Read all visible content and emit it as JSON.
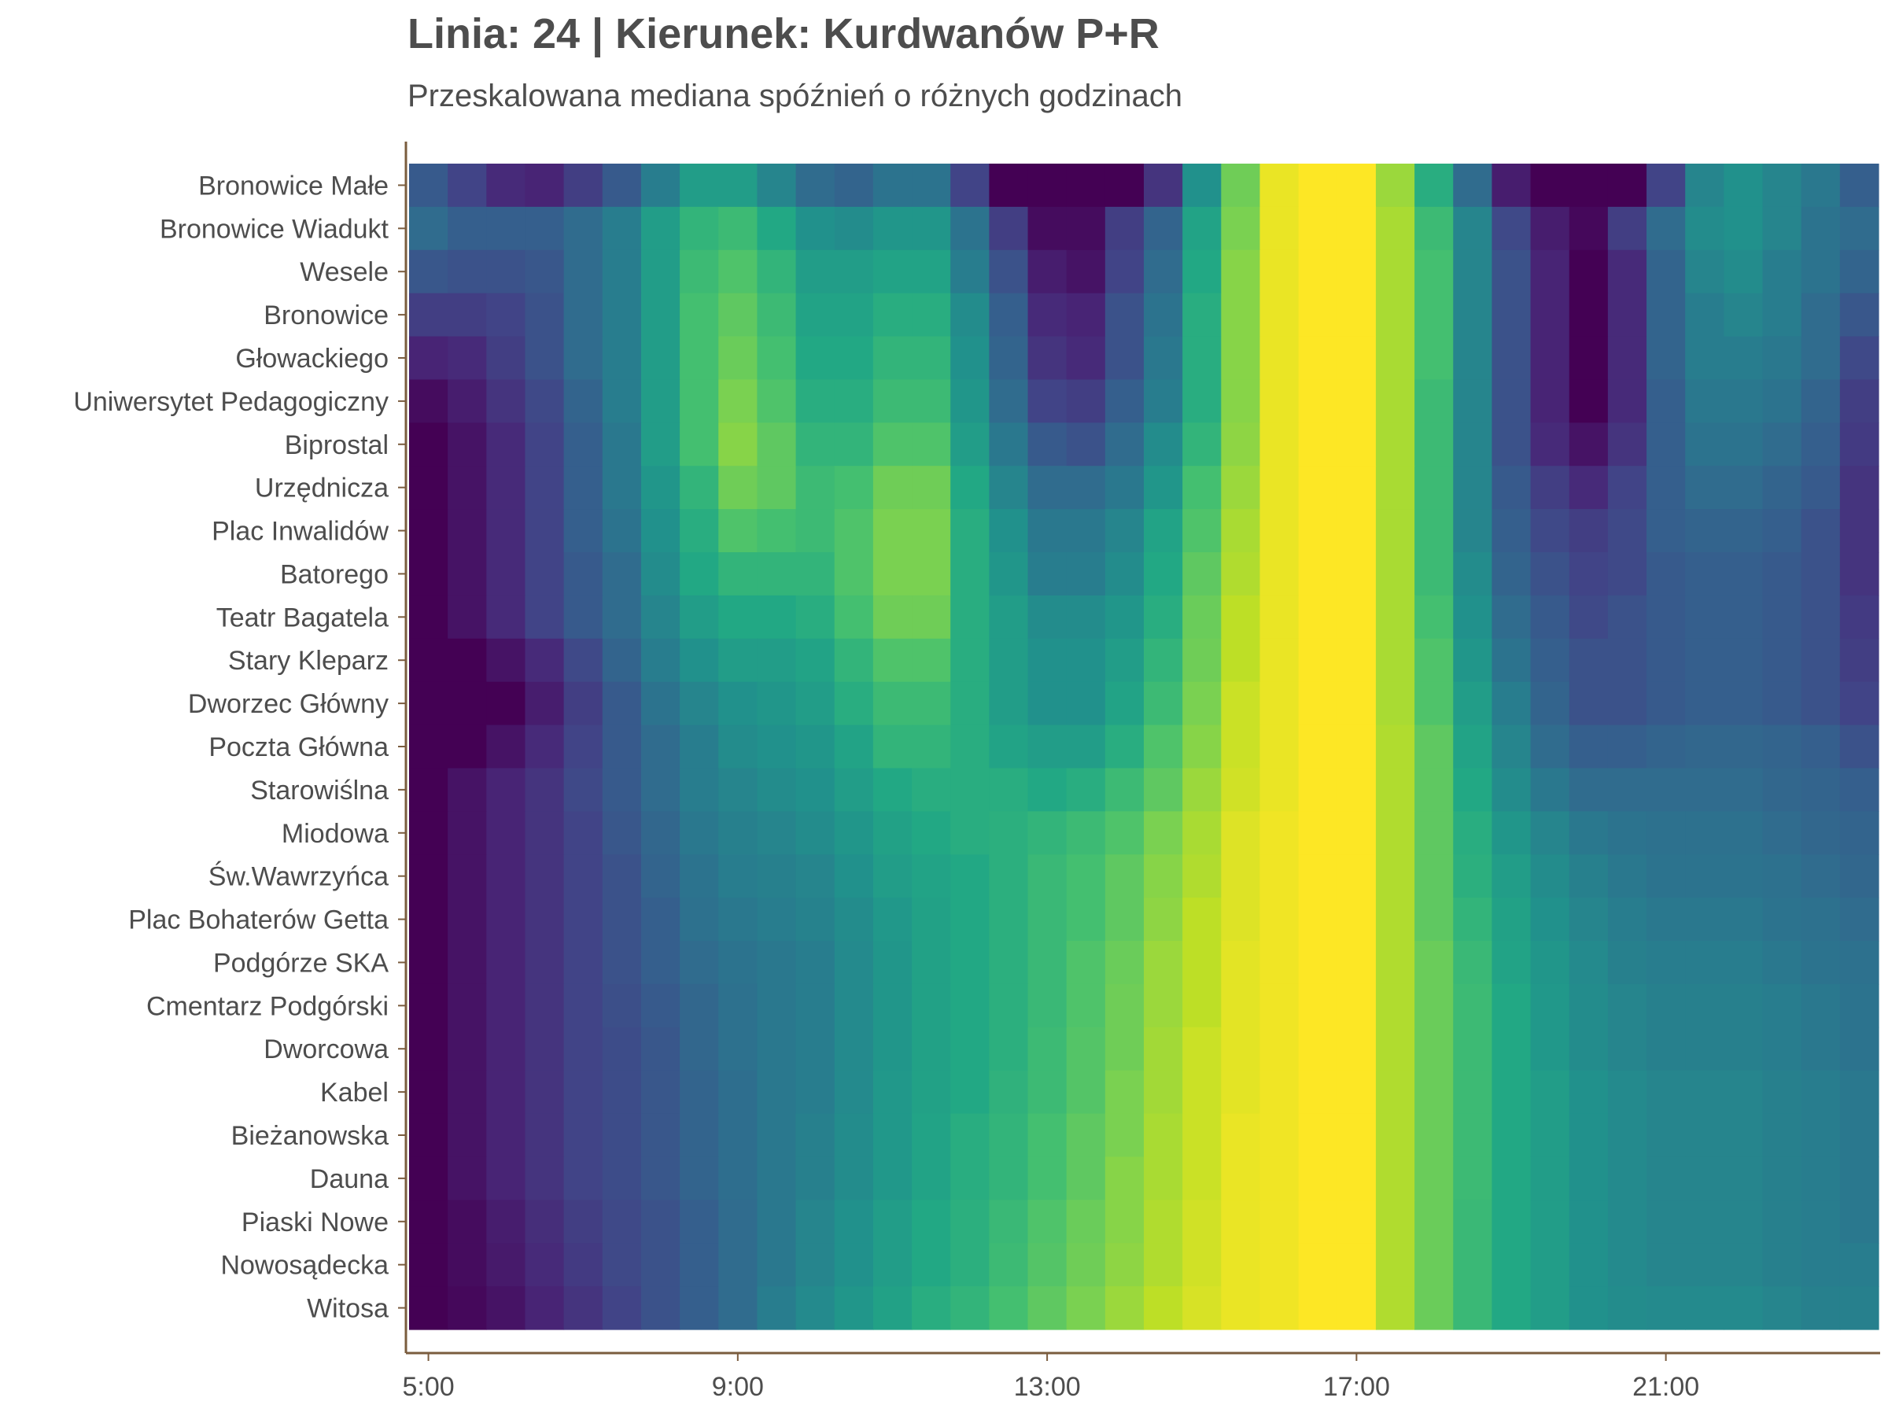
{
  "chart_data": {
    "type": "heatmap",
    "title": "Linia: 24 | Kierunek: Kurdwanów P+R",
    "subtitle": "Przeskalowana mediana spóźnień o różnych godzinach",
    "xlabel": "",
    "ylabel": "",
    "x_ticks": [
      "5:00",
      "9:00",
      "13:00",
      "17:00",
      "21:00"
    ],
    "x_hours": [
      5,
      6,
      7,
      8,
      9,
      10,
      11,
      12,
      13,
      14,
      15,
      16,
      17,
      18,
      19,
      20,
      21,
      22
    ],
    "x_bins_per_hour": 2,
    "colormap": "viridis",
    "grid": false,
    "legend": "none",
    "stops": [
      "Bronowice Małe",
      "Bronowice Wiadukt",
      "Wesele",
      "Bronowice",
      "Głowackiego",
      "Uniwersytet Pedagogiczny",
      "Biprostal",
      "Urzędnicza",
      "Plac Inwalidów",
      "Batorego",
      "Teatr Bagatela",
      "Stary Kleparz",
      "Dworzec Główny",
      "Poczta Główna",
      "Starowiślna",
      "Miodowa",
      "Św.Wawrzyńca",
      "Plac Bohaterów Getta",
      "Podgórze SKA",
      "Cmentarz Podgórski",
      "Dworcowa",
      "Kabel",
      "Bieżanowska",
      "Dauna",
      "Piaski Nowe",
      "Nowosądecka",
      "Witosa"
    ],
    "values": [
      [
        0.28,
        0.2,
        0.12,
        0.1,
        0.18,
        0.28,
        0.42,
        0.55,
        0.55,
        0.45,
        0.35,
        0.32,
        0.38,
        0.38,
        0.2,
        0.0,
        0.0,
        0.0,
        0.0,
        0.15,
        0.5,
        0.78,
        0.97,
        1.0,
        1.0,
        0.85,
        0.62,
        0.35,
        0.08,
        0.0,
        0.0,
        0.0,
        0.2,
        0.45,
        0.5,
        0.45,
        0.4,
        0.3
      ],
      [
        0.35,
        0.3,
        0.3,
        0.3,
        0.35,
        0.42,
        0.55,
        0.65,
        0.68,
        0.6,
        0.5,
        0.48,
        0.52,
        0.52,
        0.38,
        0.18,
        0.03,
        0.03,
        0.18,
        0.32,
        0.58,
        0.8,
        0.97,
        1.0,
        1.0,
        0.87,
        0.68,
        0.45,
        0.22,
        0.08,
        0.02,
        0.18,
        0.35,
        0.48,
        0.5,
        0.45,
        0.38,
        0.35
      ],
      [
        0.27,
        0.25,
        0.25,
        0.27,
        0.35,
        0.42,
        0.55,
        0.68,
        0.72,
        0.65,
        0.55,
        0.55,
        0.58,
        0.58,
        0.42,
        0.25,
        0.08,
        0.05,
        0.2,
        0.35,
        0.6,
        0.82,
        0.97,
        1.0,
        1.0,
        0.87,
        0.7,
        0.45,
        0.25,
        0.1,
        0.0,
        0.12,
        0.32,
        0.45,
        0.48,
        0.42,
        0.38,
        0.32
      ],
      [
        0.18,
        0.18,
        0.2,
        0.25,
        0.35,
        0.42,
        0.55,
        0.7,
        0.75,
        0.68,
        0.58,
        0.58,
        0.62,
        0.62,
        0.48,
        0.3,
        0.12,
        0.1,
        0.25,
        0.38,
        0.62,
        0.82,
        0.97,
        1.0,
        1.0,
        0.87,
        0.7,
        0.45,
        0.25,
        0.1,
        0.0,
        0.12,
        0.32,
        0.42,
        0.45,
        0.42,
        0.35,
        0.27
      ],
      [
        0.1,
        0.12,
        0.18,
        0.25,
        0.35,
        0.42,
        0.55,
        0.7,
        0.77,
        0.7,
        0.6,
        0.6,
        0.65,
        0.65,
        0.5,
        0.32,
        0.15,
        0.12,
        0.25,
        0.4,
        0.62,
        0.82,
        0.97,
        1.0,
        1.0,
        0.87,
        0.7,
        0.45,
        0.25,
        0.1,
        0.0,
        0.12,
        0.32,
        0.42,
        0.42,
        0.4,
        0.35,
        0.22
      ],
      [
        0.03,
        0.08,
        0.15,
        0.22,
        0.32,
        0.42,
        0.55,
        0.7,
        0.8,
        0.72,
        0.62,
        0.62,
        0.68,
        0.68,
        0.52,
        0.35,
        0.2,
        0.18,
        0.3,
        0.42,
        0.62,
        0.82,
        0.97,
        1.0,
        1.0,
        0.87,
        0.68,
        0.45,
        0.25,
        0.1,
        0.0,
        0.12,
        0.3,
        0.4,
        0.4,
        0.38,
        0.32,
        0.18
      ],
      [
        0.0,
        0.05,
        0.12,
        0.2,
        0.3,
        0.4,
        0.55,
        0.7,
        0.82,
        0.75,
        0.65,
        0.65,
        0.72,
        0.72,
        0.55,
        0.4,
        0.28,
        0.25,
        0.35,
        0.48,
        0.65,
        0.83,
        0.97,
        1.0,
        1.0,
        0.87,
        0.68,
        0.45,
        0.25,
        0.12,
        0.05,
        0.15,
        0.3,
        0.38,
        0.38,
        0.35,
        0.3,
        0.17
      ],
      [
        0.0,
        0.05,
        0.12,
        0.2,
        0.3,
        0.4,
        0.52,
        0.65,
        0.78,
        0.75,
        0.68,
        0.7,
        0.78,
        0.78,
        0.6,
        0.45,
        0.35,
        0.35,
        0.4,
        0.52,
        0.7,
        0.85,
        0.97,
        1.0,
        1.0,
        0.87,
        0.68,
        0.45,
        0.28,
        0.18,
        0.12,
        0.2,
        0.3,
        0.35,
        0.35,
        0.32,
        0.28,
        0.15
      ],
      [
        0.0,
        0.05,
        0.12,
        0.2,
        0.3,
        0.38,
        0.5,
        0.62,
        0.72,
        0.7,
        0.68,
        0.72,
        0.8,
        0.8,
        0.62,
        0.5,
        0.4,
        0.4,
        0.45,
        0.58,
        0.72,
        0.87,
        0.97,
        1.0,
        1.0,
        0.87,
        0.68,
        0.45,
        0.3,
        0.22,
        0.18,
        0.22,
        0.3,
        0.32,
        0.32,
        0.3,
        0.25,
        0.15
      ],
      [
        0.0,
        0.05,
        0.12,
        0.2,
        0.28,
        0.35,
        0.48,
        0.6,
        0.65,
        0.65,
        0.65,
        0.72,
        0.8,
        0.8,
        0.62,
        0.52,
        0.42,
        0.42,
        0.48,
        0.6,
        0.75,
        0.88,
        0.97,
        1.0,
        1.0,
        0.87,
        0.68,
        0.48,
        0.32,
        0.25,
        0.2,
        0.22,
        0.28,
        0.3,
        0.3,
        0.28,
        0.25,
        0.15
      ],
      [
        0.0,
        0.05,
        0.12,
        0.2,
        0.28,
        0.35,
        0.45,
        0.55,
        0.6,
        0.6,
        0.62,
        0.7,
        0.78,
        0.78,
        0.62,
        0.55,
        0.48,
        0.48,
        0.52,
        0.62,
        0.77,
        0.9,
        0.97,
        1.0,
        1.0,
        0.87,
        0.7,
        0.5,
        0.35,
        0.28,
        0.22,
        0.25,
        0.28,
        0.3,
        0.3,
        0.28,
        0.25,
        0.17
      ],
      [
        0.0,
        0.0,
        0.05,
        0.12,
        0.22,
        0.32,
        0.42,
        0.5,
        0.55,
        0.55,
        0.58,
        0.65,
        0.72,
        0.72,
        0.62,
        0.55,
        0.5,
        0.5,
        0.55,
        0.65,
        0.78,
        0.9,
        0.97,
        1.0,
        1.0,
        0.87,
        0.72,
        0.52,
        0.38,
        0.3,
        0.25,
        0.25,
        0.28,
        0.3,
        0.3,
        0.28,
        0.25,
        0.18
      ],
      [
        0.0,
        0.0,
        0.0,
        0.08,
        0.18,
        0.28,
        0.38,
        0.45,
        0.5,
        0.52,
        0.55,
        0.62,
        0.68,
        0.68,
        0.62,
        0.55,
        0.5,
        0.5,
        0.58,
        0.68,
        0.8,
        0.92,
        0.97,
        1.0,
        1.0,
        0.87,
        0.72,
        0.55,
        0.42,
        0.32,
        0.25,
        0.25,
        0.28,
        0.3,
        0.3,
        0.28,
        0.25,
        0.2
      ],
      [
        0.0,
        0.0,
        0.05,
        0.12,
        0.2,
        0.28,
        0.35,
        0.42,
        0.48,
        0.5,
        0.52,
        0.58,
        0.65,
        0.65,
        0.62,
        0.58,
        0.55,
        0.55,
        0.62,
        0.72,
        0.82,
        0.92,
        0.97,
        1.0,
        1.0,
        0.88,
        0.75,
        0.58,
        0.45,
        0.35,
        0.3,
        0.3,
        0.32,
        0.33,
        0.33,
        0.32,
        0.3,
        0.25
      ],
      [
        0.0,
        0.05,
        0.1,
        0.15,
        0.22,
        0.28,
        0.35,
        0.42,
        0.45,
        0.48,
        0.5,
        0.55,
        0.6,
        0.62,
        0.62,
        0.62,
        0.6,
        0.62,
        0.68,
        0.75,
        0.85,
        0.93,
        0.97,
        1.0,
        1.0,
        0.88,
        0.75,
        0.6,
        0.48,
        0.4,
        0.35,
        0.35,
        0.35,
        0.35,
        0.35,
        0.33,
        0.32,
        0.3
      ],
      [
        0.0,
        0.05,
        0.1,
        0.15,
        0.2,
        0.27,
        0.33,
        0.4,
        0.43,
        0.45,
        0.48,
        0.52,
        0.57,
        0.6,
        0.62,
        0.63,
        0.65,
        0.68,
        0.72,
        0.8,
        0.87,
        0.95,
        0.98,
        1.0,
        1.0,
        0.88,
        0.75,
        0.62,
        0.52,
        0.45,
        0.4,
        0.38,
        0.37,
        0.37,
        0.37,
        0.35,
        0.33,
        0.32
      ],
      [
        0.0,
        0.05,
        0.1,
        0.15,
        0.2,
        0.25,
        0.32,
        0.38,
        0.42,
        0.43,
        0.45,
        0.5,
        0.55,
        0.58,
        0.6,
        0.63,
        0.67,
        0.7,
        0.75,
        0.82,
        0.88,
        0.95,
        0.98,
        1.0,
        1.0,
        0.88,
        0.75,
        0.63,
        0.55,
        0.48,
        0.43,
        0.4,
        0.38,
        0.38,
        0.38,
        0.37,
        0.35,
        0.33
      ],
      [
        0.0,
        0.05,
        0.1,
        0.15,
        0.2,
        0.25,
        0.3,
        0.37,
        0.4,
        0.42,
        0.44,
        0.48,
        0.53,
        0.57,
        0.6,
        0.63,
        0.67,
        0.7,
        0.75,
        0.83,
        0.9,
        0.95,
        0.98,
        1.0,
        1.0,
        0.88,
        0.75,
        0.65,
        0.57,
        0.5,
        0.45,
        0.42,
        0.4,
        0.4,
        0.4,
        0.38,
        0.37,
        0.35
      ],
      [
        0.0,
        0.05,
        0.1,
        0.15,
        0.2,
        0.25,
        0.3,
        0.35,
        0.38,
        0.4,
        0.42,
        0.47,
        0.52,
        0.57,
        0.6,
        0.63,
        0.67,
        0.72,
        0.77,
        0.85,
        0.9,
        0.96,
        0.98,
        1.0,
        1.0,
        0.88,
        0.77,
        0.67,
        0.58,
        0.52,
        0.47,
        0.43,
        0.42,
        0.42,
        0.42,
        0.4,
        0.38,
        0.37
      ],
      [
        0.0,
        0.05,
        0.1,
        0.15,
        0.2,
        0.24,
        0.28,
        0.33,
        0.37,
        0.4,
        0.42,
        0.47,
        0.52,
        0.57,
        0.6,
        0.63,
        0.67,
        0.72,
        0.78,
        0.85,
        0.9,
        0.96,
        0.98,
        1.0,
        1.0,
        0.88,
        0.77,
        0.68,
        0.6,
        0.53,
        0.48,
        0.45,
        0.43,
        0.43,
        0.43,
        0.42,
        0.4,
        0.38
      ],
      [
        0.0,
        0.05,
        0.1,
        0.15,
        0.2,
        0.23,
        0.27,
        0.33,
        0.37,
        0.4,
        0.42,
        0.47,
        0.52,
        0.57,
        0.6,
        0.63,
        0.68,
        0.73,
        0.78,
        0.86,
        0.92,
        0.96,
        0.98,
        1.0,
        1.0,
        0.88,
        0.77,
        0.68,
        0.6,
        0.53,
        0.48,
        0.45,
        0.43,
        0.43,
        0.43,
        0.42,
        0.4,
        0.38
      ],
      [
        0.0,
        0.05,
        0.1,
        0.15,
        0.2,
        0.23,
        0.27,
        0.32,
        0.36,
        0.4,
        0.42,
        0.47,
        0.53,
        0.57,
        0.6,
        0.64,
        0.68,
        0.73,
        0.8,
        0.86,
        0.92,
        0.96,
        0.98,
        1.0,
        1.0,
        0.88,
        0.77,
        0.68,
        0.6,
        0.55,
        0.5,
        0.47,
        0.45,
        0.45,
        0.45,
        0.43,
        0.42,
        0.4
      ],
      [
        0.0,
        0.05,
        0.1,
        0.15,
        0.2,
        0.23,
        0.27,
        0.32,
        0.36,
        0.4,
        0.43,
        0.48,
        0.53,
        0.58,
        0.62,
        0.65,
        0.7,
        0.75,
        0.8,
        0.87,
        0.92,
        0.97,
        0.98,
        1.0,
        1.0,
        0.88,
        0.77,
        0.68,
        0.6,
        0.55,
        0.5,
        0.47,
        0.45,
        0.45,
        0.45,
        0.43,
        0.42,
        0.4
      ],
      [
        0.0,
        0.05,
        0.1,
        0.15,
        0.2,
        0.23,
        0.27,
        0.32,
        0.36,
        0.4,
        0.43,
        0.48,
        0.53,
        0.58,
        0.62,
        0.65,
        0.7,
        0.75,
        0.82,
        0.87,
        0.92,
        0.97,
        0.98,
        1.0,
        1.0,
        0.88,
        0.77,
        0.68,
        0.6,
        0.55,
        0.5,
        0.47,
        0.45,
        0.45,
        0.45,
        0.43,
        0.42,
        0.4
      ],
      [
        0.0,
        0.03,
        0.08,
        0.13,
        0.18,
        0.22,
        0.25,
        0.3,
        0.35,
        0.4,
        0.45,
        0.5,
        0.55,
        0.6,
        0.63,
        0.67,
        0.72,
        0.77,
        0.82,
        0.88,
        0.93,
        0.97,
        0.98,
        1.0,
        1.0,
        0.88,
        0.77,
        0.67,
        0.6,
        0.55,
        0.5,
        0.47,
        0.45,
        0.45,
        0.45,
        0.43,
        0.42,
        0.4
      ],
      [
        0.0,
        0.03,
        0.07,
        0.12,
        0.17,
        0.22,
        0.25,
        0.3,
        0.35,
        0.4,
        0.45,
        0.5,
        0.55,
        0.6,
        0.63,
        0.68,
        0.73,
        0.78,
        0.83,
        0.88,
        0.93,
        0.97,
        0.98,
        1.0,
        1.0,
        0.88,
        0.77,
        0.67,
        0.6,
        0.55,
        0.5,
        0.47,
        0.45,
        0.45,
        0.45,
        0.43,
        0.42,
        0.42
      ],
      [
        0.0,
        0.02,
        0.05,
        0.1,
        0.15,
        0.2,
        0.25,
        0.3,
        0.35,
        0.42,
        0.47,
        0.52,
        0.57,
        0.62,
        0.65,
        0.7,
        0.75,
        0.8,
        0.85,
        0.9,
        0.94,
        0.97,
        0.98,
        1.0,
        1.0,
        0.88,
        0.77,
        0.67,
        0.6,
        0.55,
        0.5,
        0.48,
        0.47,
        0.47,
        0.47,
        0.45,
        0.43,
        0.43
      ]
    ]
  }
}
